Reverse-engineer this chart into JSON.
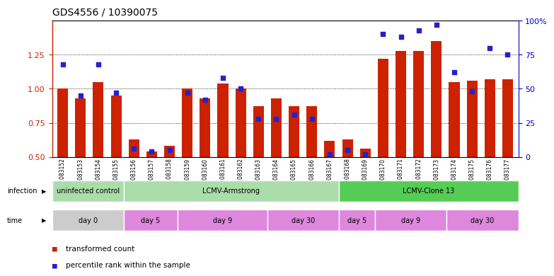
{
  "title": "GDS4556 / 10390075",
  "samples": [
    "GSM1083152",
    "GSM1083153",
    "GSM1083154",
    "GSM1083155",
    "GSM1083156",
    "GSM1083157",
    "GSM1083158",
    "GSM1083159",
    "GSM1083160",
    "GSM1083161",
    "GSM1083162",
    "GSM1083163",
    "GSM1083164",
    "GSM1083165",
    "GSM1083166",
    "GSM1083167",
    "GSM1083168",
    "GSM1083169",
    "GSM1083170",
    "GSM1083171",
    "GSM1083172",
    "GSM1083173",
    "GSM1083174",
    "GSM1083175",
    "GSM1083176",
    "GSM1083177"
  ],
  "red_values": [
    1.0,
    0.93,
    1.05,
    0.95,
    0.63,
    0.54,
    0.58,
    1.0,
    0.93,
    1.04,
    1.0,
    0.87,
    0.93,
    0.87,
    0.87,
    0.62,
    0.63,
    0.56,
    1.22,
    1.28,
    1.28,
    1.35,
    1.05,
    1.06,
    1.07,
    1.07
  ],
  "blue_values": [
    68,
    45,
    68,
    47,
    6,
    4,
    5,
    47,
    42,
    58,
    50,
    28,
    28,
    31,
    28,
    2,
    5,
    2,
    90,
    88,
    93,
    97,
    62,
    48,
    80,
    75
  ],
  "ylim_left": [
    0.5,
    1.5
  ],
  "ylim_right": [
    0,
    100
  ],
  "yticks_left": [
    0.5,
    0.75,
    1.0,
    1.25
  ],
  "yticks_right": [
    0,
    25,
    50,
    75,
    100
  ],
  "ytick_right_labels": [
    "0",
    "25",
    "50",
    "75",
    "100%"
  ],
  "bar_color": "#cc2200",
  "dot_color": "#2222cc",
  "bar_bottom": 0.5,
  "infection_groups": [
    {
      "label": "uninfected control",
      "start": 0,
      "end": 4,
      "color": "#aaddaa"
    },
    {
      "label": "LCMV-Armstrong",
      "start": 4,
      "end": 16,
      "color": "#aaddaa"
    },
    {
      "label": "LCMV-Clone 13",
      "start": 16,
      "end": 26,
      "color": "#55cc55"
    }
  ],
  "time_groups": [
    {
      "label": "day 0",
      "start": 0,
      "end": 4,
      "color": "#cccccc"
    },
    {
      "label": "day 5",
      "start": 4,
      "end": 7,
      "color": "#dd88dd"
    },
    {
      "label": "day 9",
      "start": 7,
      "end": 12,
      "color": "#dd88dd"
    },
    {
      "label": "day 30",
      "start": 12,
      "end": 16,
      "color": "#dd88dd"
    },
    {
      "label": "day 5",
      "start": 16,
      "end": 18,
      "color": "#dd88dd"
    },
    {
      "label": "day 9",
      "start": 18,
      "end": 22,
      "color": "#dd88dd"
    },
    {
      "label": "day 30",
      "start": 22,
      "end": 26,
      "color": "#dd88dd"
    }
  ],
  "background_color": "#ffffff",
  "left_axis_color": "#cc2200",
  "right_axis_color": "#0000cc"
}
